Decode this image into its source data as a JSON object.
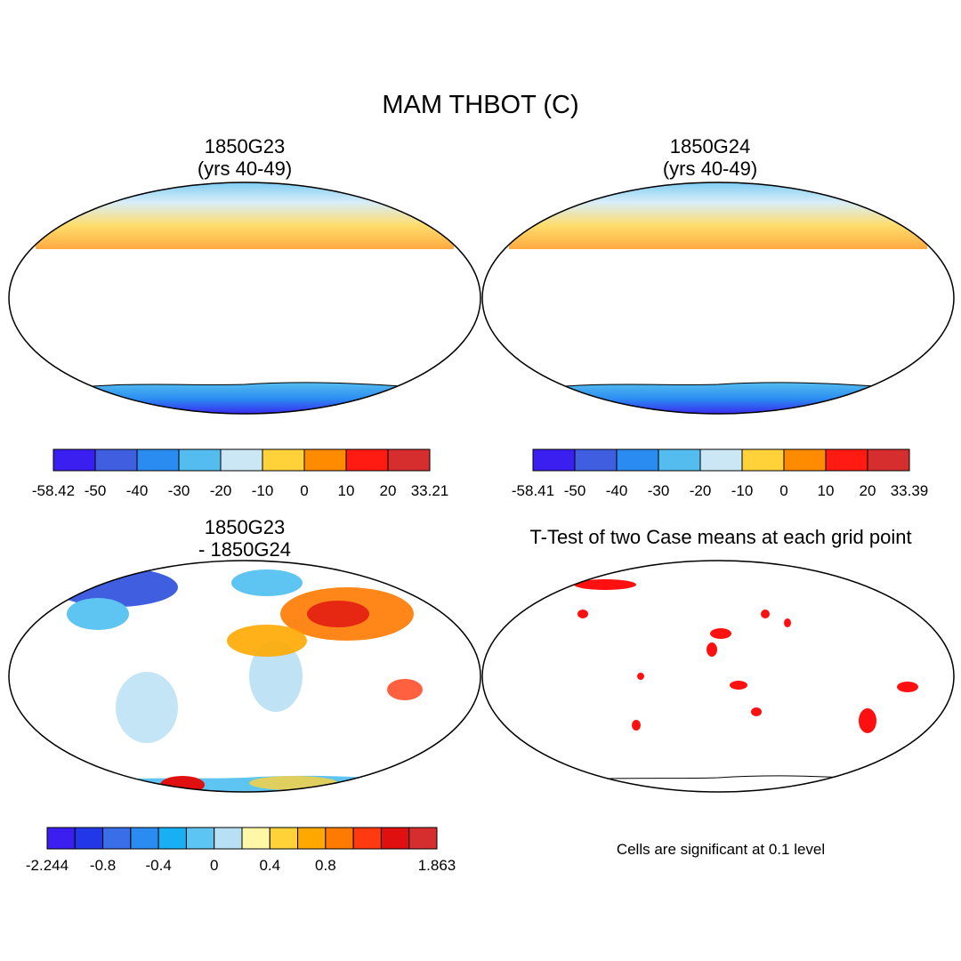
{
  "main_title": "MAM THBOT (C)",
  "panels": [
    {
      "title_line1": "1850G23",
      "title_line2": "(yrs 40-49)",
      "colorbar": {
        "colors": [
          "#3b1ff0",
          "#3f5fe0",
          "#2a8cf0",
          "#55bcef",
          "#cbe7f5",
          "#ffd23a",
          "#ff8c00",
          "#ff1a12",
          "#d62e2e"
        ],
        "labels": [
          "-58.42",
          "-50",
          "-40",
          "-30",
          "-20",
          "-10",
          "0",
          "10",
          "20",
          "33.21"
        ]
      }
    },
    {
      "title_line1": "1850G24",
      "title_line2": "(yrs 40-49)",
      "colorbar": {
        "colors": [
          "#3b1ff0",
          "#3f5fe0",
          "#2a8cf0",
          "#55bcef",
          "#cbe7f5",
          "#ffd23a",
          "#ff8c00",
          "#ff1a12",
          "#d62e2e"
        ],
        "labels": [
          "-58.41",
          "-50",
          "-40",
          "-30",
          "-20",
          "-10",
          "0",
          "10",
          "20",
          "33.39"
        ]
      }
    },
    {
      "title_line1": "1850G23",
      "title_line2": "- 1850G24",
      "colorbar": {
        "colors": [
          "#3a1ff0",
          "#2238e8",
          "#3a6ee8",
          "#2a8cf0",
          "#18b0f5",
          "#5ec4f2",
          "#b8e0f4",
          "#fff7a8",
          "#ffd23a",
          "#ffa800",
          "#ff7a00",
          "#ff3a10",
          "#e01010",
          "#d62e2e"
        ],
        "labels": [
          "-2.244",
          "",
          "-0.8",
          "",
          "-0.4",
          "",
          "0",
          "",
          "0.4",
          "",
          "0.8",
          "",
          "",
          "",
          "1.863"
        ]
      }
    },
    {
      "title": "T-Test of two Case means at each grid point",
      "note": "Cells are significant at 0.1 level"
    }
  ]
}
